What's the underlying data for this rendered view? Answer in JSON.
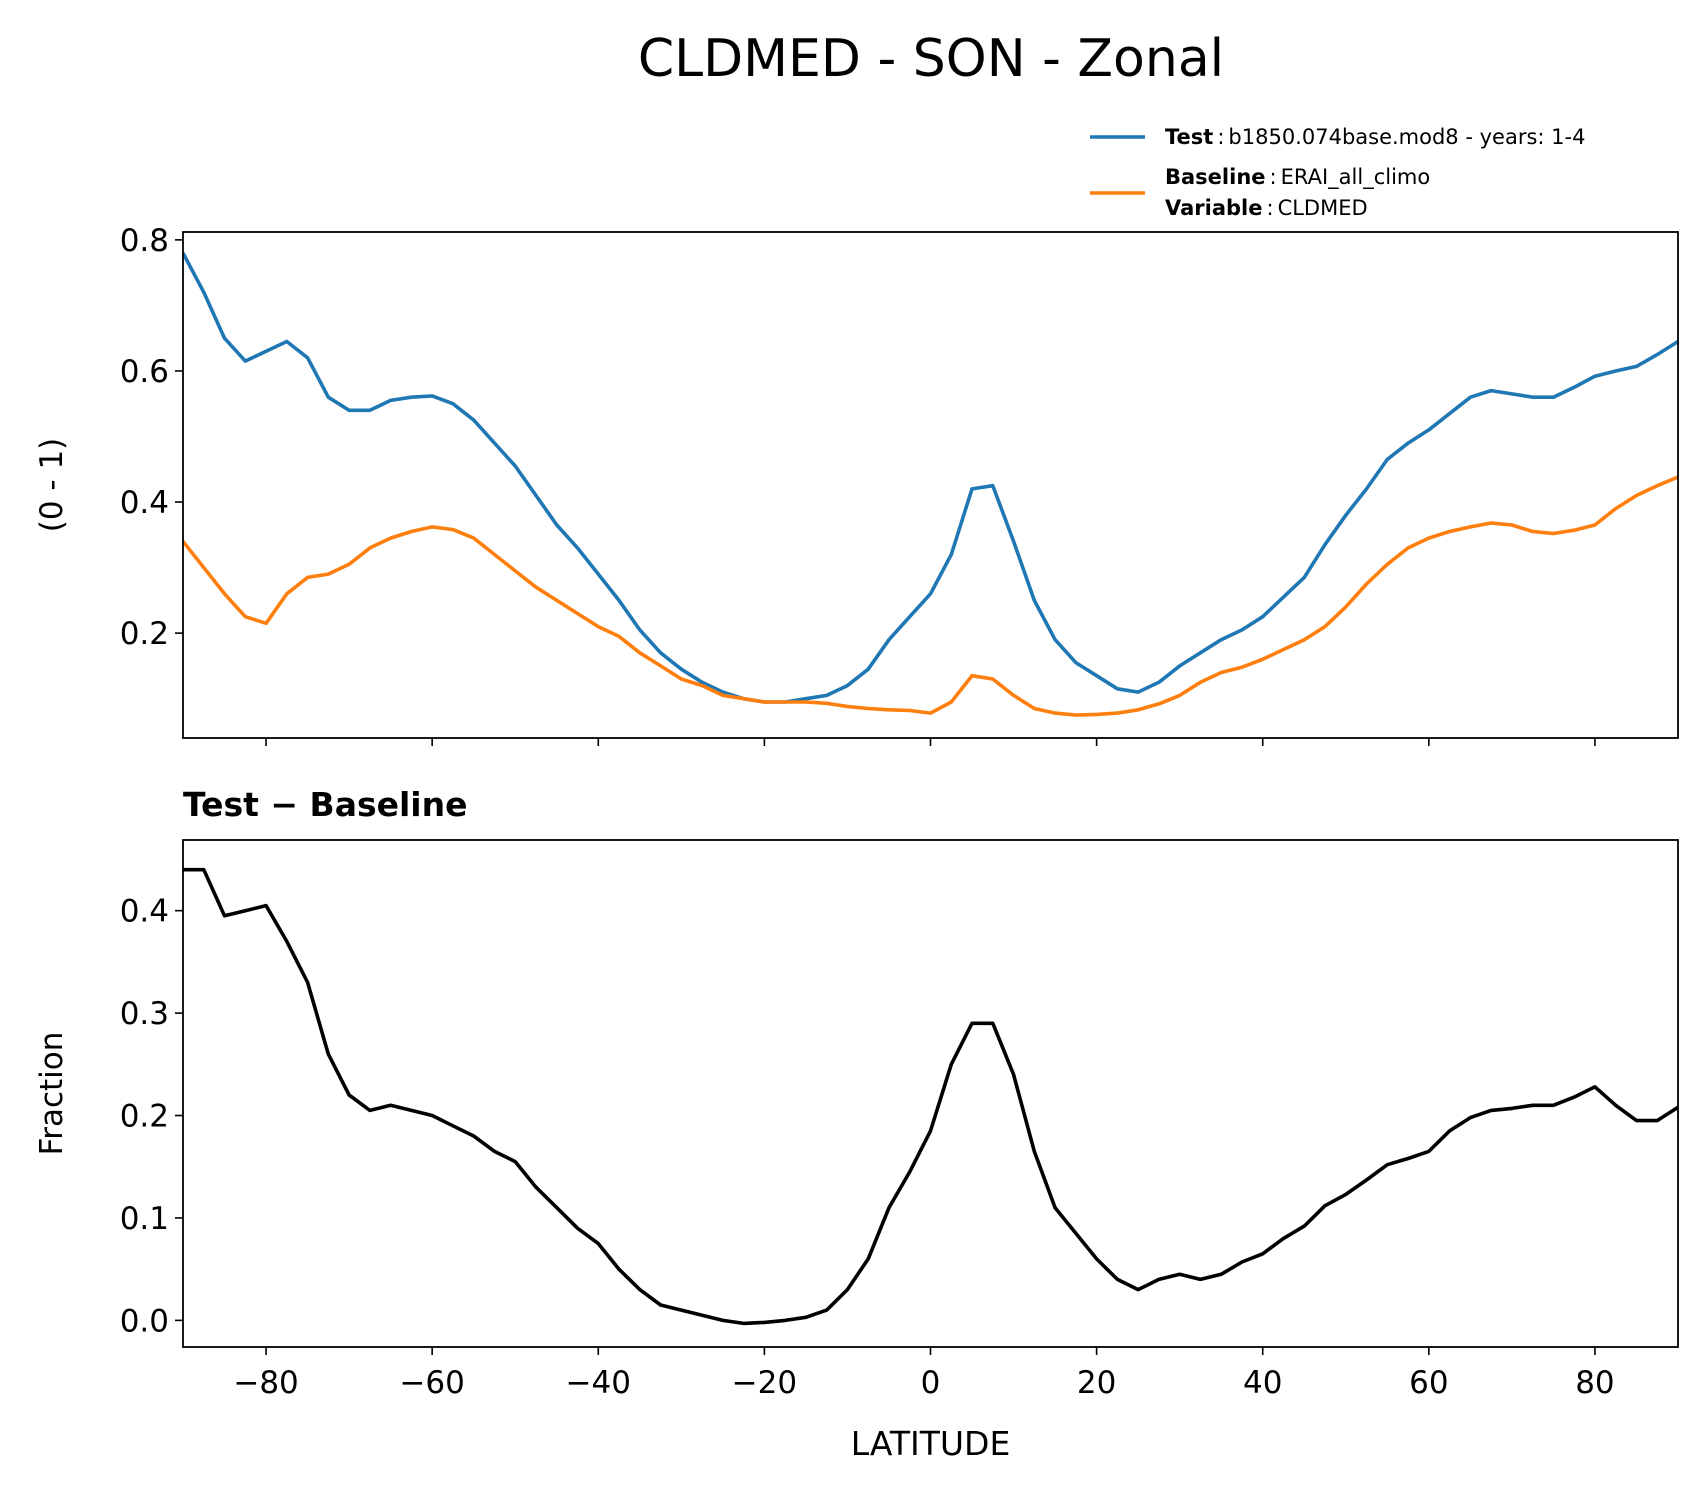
{
  "title": "CLDMED - SON - Zonal",
  "chart_data": [
    {
      "type": "line",
      "ylabel": "(0 - 1)",
      "xlim": [
        -90,
        90
      ],
      "xticks": [
        -80,
        -60,
        -40,
        -20,
        0,
        20,
        40,
        60,
        80
      ],
      "ylim": [
        0.04,
        0.812
      ],
      "yticks": [
        0.2,
        0.4,
        0.6,
        0.8
      ],
      "legend": "upper right outside",
      "legend_separator": ":",
      "variable_label": "Variable",
      "variable": "CLDMED",
      "x": [
        -90,
        -87.5,
        -85,
        -82.5,
        -80,
        -77.5,
        -75,
        -72.5,
        -70,
        -67.5,
        -65,
        -62.5,
        -60,
        -57.5,
        -55,
        -52.5,
        -50,
        -47.5,
        -45,
        -42.5,
        -40,
        -37.5,
        -35,
        -32.5,
        -30,
        -27.5,
        -25,
        -22.5,
        -20,
        -17.5,
        -15,
        -12.5,
        -10,
        -7.5,
        -5,
        -2.5,
        0,
        2.5,
        5,
        7.5,
        10,
        12.5,
        15,
        17.5,
        20,
        22.5,
        25,
        27.5,
        30,
        32.5,
        35,
        37.5,
        40,
        42.5,
        45,
        47.5,
        50,
        52.5,
        55,
        57.5,
        60,
        62.5,
        65,
        67.5,
        70,
        72.5,
        75,
        77.5,
        80,
        82.5,
        85,
        87.5,
        90
      ],
      "series": [
        {
          "name": "Test",
          "case": "b1850.074base.mod8 - years: 1-4",
          "color": "#1f77b4",
          "values": [
            0.78,
            0.72,
            0.65,
            0.615,
            0.63,
            0.645,
            0.62,
            0.56,
            0.54,
            0.54,
            0.555,
            0.56,
            0.562,
            0.55,
            0.525,
            0.49,
            0.455,
            0.41,
            0.365,
            0.33,
            0.29,
            0.25,
            0.205,
            0.17,
            0.145,
            0.125,
            0.11,
            0.1,
            0.095,
            0.095,
            0.1,
            0.105,
            0.12,
            0.145,
            0.19,
            0.225,
            0.26,
            0.32,
            0.42,
            0.425,
            0.34,
            0.25,
            0.19,
            0.155,
            0.135,
            0.115,
            0.11,
            0.125,
            0.15,
            0.17,
            0.19,
            0.205,
            0.225,
            0.255,
            0.285,
            0.335,
            0.38,
            0.42,
            0.465,
            0.49,
            0.51,
            0.535,
            0.56,
            0.57,
            0.565,
            0.56,
            0.56,
            0.575,
            0.592,
            0.6,
            0.607,
            0.625,
            0.645
          ]
        },
        {
          "name": "Baseline",
          "case": "ERAI_all_climo",
          "color": "#ff7f0e",
          "values": [
            0.34,
            0.3,
            0.26,
            0.225,
            0.215,
            0.26,
            0.285,
            0.29,
            0.305,
            0.33,
            0.345,
            0.355,
            0.362,
            0.358,
            0.345,
            0.32,
            0.295,
            0.27,
            0.25,
            0.23,
            0.21,
            0.195,
            0.17,
            0.15,
            0.13,
            0.12,
            0.105,
            0.1,
            0.095,
            0.095,
            0.095,
            0.093,
            0.088,
            0.085,
            0.083,
            0.082,
            0.078,
            0.095,
            0.135,
            0.13,
            0.105,
            0.085,
            0.078,
            0.075,
            0.076,
            0.078,
            0.083,
            0.092,
            0.105,
            0.125,
            0.14,
            0.148,
            0.16,
            0.175,
            0.19,
            0.21,
            0.24,
            0.275,
            0.305,
            0.33,
            0.345,
            0.355,
            0.362,
            0.368,
            0.365,
            0.355,
            0.352,
            0.357,
            0.365,
            0.39,
            0.41,
            0.425,
            0.438
          ]
        }
      ]
    },
    {
      "type": "line",
      "title": "Test − Baseline",
      "xlabel": "LATITUDE",
      "ylabel": "Fraction",
      "xlim": [
        -90,
        90
      ],
      "xticks": [
        {
          "value": -80,
          "label": "−80"
        },
        {
          "value": -60,
          "label": "−60"
        },
        {
          "value": -40,
          "label": "−40"
        },
        {
          "value": -20,
          "label": "−20"
        },
        0,
        20,
        40,
        60,
        80
      ],
      "ylim": [
        -0.026,
        0.469
      ],
      "yticks": [
        {
          "value": 0,
          "label": "0.0"
        },
        0.1,
        0.2,
        0.3,
        0.4
      ],
      "x": [
        -90,
        -87.5,
        -85,
        -82.5,
        -80,
        -77.5,
        -75,
        -72.5,
        -70,
        -67.5,
        -65,
        -62.5,
        -60,
        -57.5,
        -55,
        -52.5,
        -50,
        -47.5,
        -45,
        -42.5,
        -40,
        -37.5,
        -35,
        -32.5,
        -30,
        -27.5,
        -25,
        -22.5,
        -20,
        -17.5,
        -15,
        -12.5,
        -10,
        -7.5,
        -5,
        -2.5,
        0,
        2.5,
        5,
        7.5,
        10,
        12.5,
        15,
        17.5,
        20,
        22.5,
        25,
        27.5,
        30,
        32.5,
        35,
        37.5,
        40,
        42.5,
        45,
        47.5,
        50,
        52.5,
        55,
        57.5,
        60,
        62.5,
        65,
        67.5,
        70,
        72.5,
        75,
        77.5,
        80,
        82.5,
        85,
        87.5,
        90
      ],
      "color": "#000000",
      "values": [
        0.44,
        0.44,
        0.395,
        0.4,
        0.405,
        0.37,
        0.33,
        0.26,
        0.22,
        0.205,
        0.21,
        0.205,
        0.2,
        0.19,
        0.18,
        0.165,
        0.155,
        0.13,
        0.11,
        0.09,
        0.075,
        0.05,
        0.03,
        0.015,
        0.01,
        0.005,
        0.0,
        -0.003,
        -0.002,
        0.0,
        0.003,
        0.01,
        0.03,
        0.06,
        0.11,
        0.145,
        0.185,
        0.25,
        0.29,
        0.29,
        0.24,
        0.165,
        0.11,
        0.085,
        0.06,
        0.04,
        0.03,
        0.04,
        0.045,
        0.04,
        0.045,
        0.057,
        0.065,
        0.08,
        0.092,
        0.112,
        0.123,
        0.137,
        0.152,
        0.158,
        0.165,
        0.185,
        0.198,
        0.205,
        0.207,
        0.21,
        0.21,
        0.218,
        0.228,
        0.21,
        0.195,
        0.195,
        0.208
      ]
    }
  ]
}
